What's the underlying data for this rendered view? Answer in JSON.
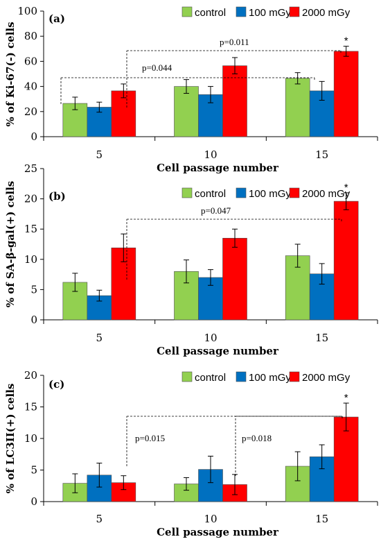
{
  "chart_data": [
    {
      "type": "bar",
      "panel_label": "(a)",
      "categories": [
        "5",
        "10",
        "15"
      ],
      "xlabel": "Cell passage number",
      "ylabel": "% of Ki-67(-) cells",
      "ylim": [
        0,
        100
      ],
      "yticks": [
        0,
        20,
        40,
        60,
        80,
        100
      ],
      "series": [
        {
          "name": "control",
          "color": "#92d050",
          "values": [
            26.5,
            40,
            46.5
          ],
          "errors": [
            5,
            5.5,
            4.5
          ]
        },
        {
          "name": "100 mGy",
          "color": "#0070c0",
          "values": [
            23.5,
            33.5,
            36.5
          ],
          "errors": [
            4,
            6.5,
            7.5
          ]
        },
        {
          "name": "2000 mGy",
          "color": "#ff0000",
          "values": [
            36.5,
            56.5,
            68
          ],
          "errors": [
            5.5,
            6.5,
            4
          ]
        }
      ],
      "annotations": [
        {
          "text": "p=0.044",
          "from": [
            0,
            0
          ],
          "to": [
            2,
            0
          ],
          "level": 47
        },
        {
          "text": "p=0.011",
          "from": [
            0,
            2
          ],
          "to": [
            2,
            2
          ],
          "level": 68
        }
      ],
      "significance": [
        {
          "text": "*",
          "category": 2,
          "series": 2
        }
      ],
      "legend": "top-right"
    },
    {
      "type": "bar",
      "panel_label": "(b)",
      "categories": [
        "5",
        "10",
        "15"
      ],
      "xlabel": "Cell passage number",
      "ylabel": "% of SA-β-gal(+) cells",
      "ylim": [
        0,
        25
      ],
      "yticks": [
        0,
        5,
        10,
        15,
        20,
        25
      ],
      "series": [
        {
          "name": "control",
          "color": "#92d050",
          "values": [
            6.2,
            8,
            10.6
          ],
          "errors": [
            1.5,
            1.9,
            1.9
          ]
        },
        {
          "name": "100 mGy",
          "color": "#0070c0",
          "values": [
            4,
            7,
            7.6
          ],
          "errors": [
            0.9,
            1.3,
            1.7
          ]
        },
        {
          "name": "2000 mGy",
          "color": "#ff0000",
          "values": [
            11.9,
            13.5,
            19.6
          ],
          "errors": [
            2.3,
            1.5,
            1.4
          ]
        }
      ],
      "annotations": [
        {
          "text": "p=0.047",
          "from": [
            0,
            2
          ],
          "to": [
            2,
            2
          ],
          "level": 19.6
        }
      ],
      "significance": [
        {
          "text": "*",
          "category": 2,
          "series": 2
        }
      ],
      "legend": "top-right"
    },
    {
      "type": "bar",
      "panel_label": "(c)",
      "categories": [
        "5",
        "10",
        "15"
      ],
      "xlabel": "Cell passage number",
      "ylabel": "% of LC3II(+) cells",
      "ylim": [
        0,
        20
      ],
      "yticks": [
        0,
        5,
        10,
        15,
        20
      ],
      "series": [
        {
          "name": "control",
          "color": "#92d050",
          "values": [
            2.9,
            2.8,
            5.6
          ],
          "errors": [
            1.5,
            1,
            2.3
          ]
        },
        {
          "name": "100 mGy",
          "color": "#0070c0",
          "values": [
            4.2,
            5.1,
            7.1
          ],
          "errors": [
            1.9,
            2.1,
            1.9
          ]
        },
        {
          "name": "2000 mGy",
          "color": "#ff0000",
          "values": [
            3,
            2.7,
            13.4
          ],
          "errors": [
            1.1,
            1.6,
            2.2
          ]
        }
      ],
      "annotations": [
        {
          "text": "p=0.015",
          "from": [
            0,
            2
          ],
          "to": [
            2,
            2
          ],
          "level": 13.4
        },
        {
          "text": "p=0.018",
          "from": [
            1,
            2
          ],
          "to": [
            2,
            2
          ],
          "level": 13.4
        }
      ],
      "significance": [
        {
          "text": "*",
          "category": 2,
          "series": 2
        }
      ],
      "legend": "top-right"
    }
  ]
}
